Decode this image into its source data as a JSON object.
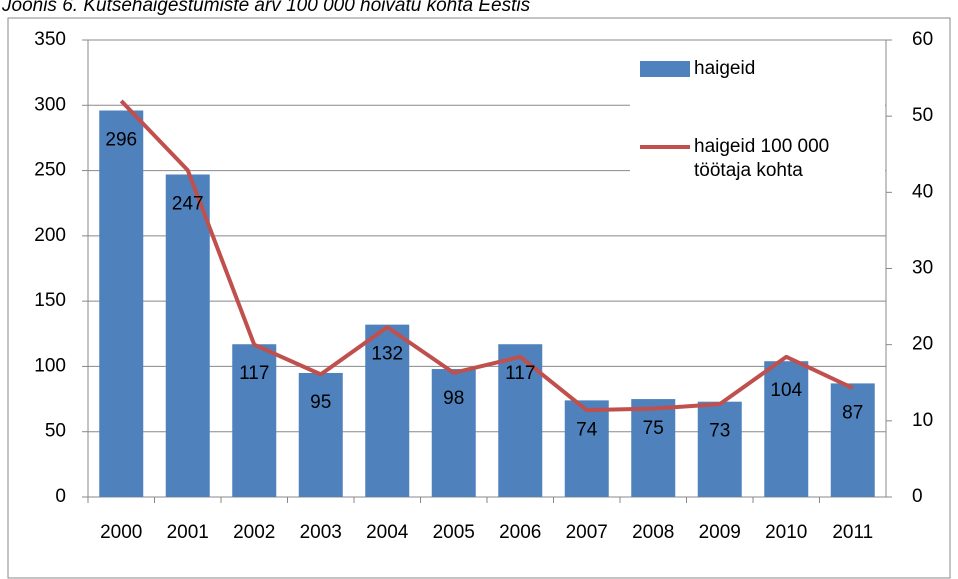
{
  "chart_data": {
    "type": "bar-line",
    "title": "Joonis 6. Kutsehaigestumiste arv 100 000 hõivatu kohta Eestis",
    "categories": [
      "2000",
      "2001",
      "2002",
      "2003",
      "2004",
      "2005",
      "2006",
      "2007",
      "2008",
      "2009",
      "2010",
      "2011"
    ],
    "series": [
      {
        "name": "haigeid",
        "type": "bar",
        "color": "#4f81bd",
        "values": [
          296,
          247,
          117,
          95,
          132,
          98,
          117,
          74,
          75,
          73,
          104,
          87
        ]
      },
      {
        "name": "haigeid 100 000 töötaja kohta",
        "type": "line",
        "axis": "y2",
        "color": "#c0504d",
        "values": [
          52,
          42.9,
          20,
          16.1,
          22.3,
          16.3,
          18.4,
          11.4,
          11.6,
          12.2,
          18.4,
          14.3
        ]
      }
    ],
    "ylim": [
      0,
      350
    ],
    "yticks": [
      0,
      50,
      100,
      150,
      200,
      250,
      300,
      350
    ],
    "y2lim": [
      0,
      60
    ],
    "y2ticks": [
      0,
      10,
      20,
      30,
      40,
      50,
      60
    ],
    "grid": true,
    "legend": "top-right"
  }
}
